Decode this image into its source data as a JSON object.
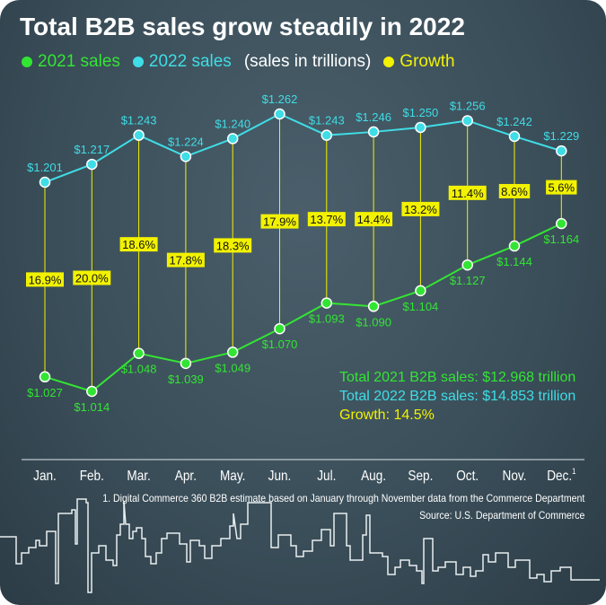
{
  "title": "Total B2B sales grow steadily in 2022",
  "legend": {
    "s2021": "2021 sales",
    "s2022": "2022 sales",
    "unit": "(sales in trillions)",
    "growth": "Growth"
  },
  "colors": {
    "s2021": "#33e533",
    "s2022": "#3fdde6",
    "growth": "#f2f200",
    "text": "#ffffff"
  },
  "totals": {
    "t2021": "Total 2021 B2B sales: $12.968 trillion",
    "t2022": "Total 2022 B2B sales: $14.853 trillion",
    "growth": "Growth: 14.5%"
  },
  "footnote": "1. Digital Commerce 360 B2B estimate based on January through November data from the Commerce Department",
  "source": "Source: U.S. Department of Commerce",
  "chart_data": {
    "type": "line",
    "categories": [
      "Jan.",
      "Feb.",
      "Mar.",
      "Apr.",
      "May.",
      "Jun.",
      "Jul.",
      "Aug.",
      "Sep.",
      "Oct.",
      "Nov.",
      "Dec."
    ],
    "category_superscript": {
      "Dec.": "1"
    },
    "ylim": [
      1.0,
      1.27
    ],
    "grid": false,
    "legend_placement": "top-left",
    "series": [
      {
        "name": "2021 sales",
        "values": [
          1.027,
          1.014,
          1.048,
          1.039,
          1.049,
          1.07,
          1.093,
          1.09,
          1.104,
          1.127,
          1.144,
          1.164
        ],
        "labels": [
          "$1.027",
          "$1.014",
          "$1.048",
          "$1.039",
          "$1.049",
          "$1.070",
          "$1.093",
          "$1.090",
          "$1.104",
          "$1.127",
          "$1.144",
          "$1.164"
        ]
      },
      {
        "name": "2022 sales",
        "values": [
          1.201,
          1.217,
          1.243,
          1.224,
          1.24,
          1.262,
          1.243,
          1.246,
          1.25,
          1.256,
          1.242,
          1.229
        ],
        "labels": [
          "$1.201",
          "$1.217",
          "$1.243",
          "$1.224",
          "$1.240",
          "$1.262",
          "$1.243",
          "$1.246",
          "$1.250",
          "$1.256",
          "$1.242",
          "$1.229"
        ]
      }
    ],
    "growth": {
      "name": "Growth",
      "labels": [
        "16.9%",
        "20.0%",
        "18.6%",
        "17.8%",
        "18.3%",
        "17.9%",
        "13.7%",
        "14.4%",
        "13.2%",
        "11.4%",
        "8.6%",
        "5.6%"
      ]
    }
  }
}
